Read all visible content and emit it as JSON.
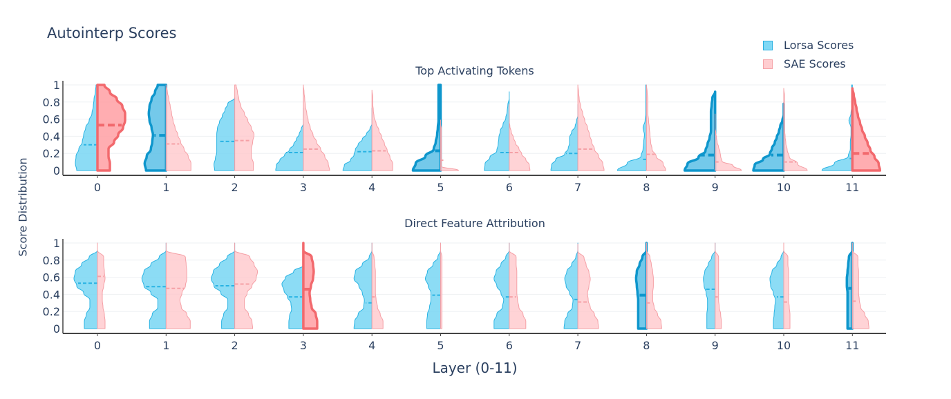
{
  "title": "Autointerp Scores",
  "legend": [
    {
      "label": "Lorsa Scores",
      "fill": "#7fd8f5",
      "stroke": "#2ab0e0"
    },
    {
      "label": "SAE Scores",
      "fill": "#ffcdd0",
      "stroke": "#f5a3a8"
    }
  ],
  "colors": {
    "lorsa_fill": "#6fd3f3",
    "lorsa_line": "#29b3e3",
    "lorsa_highlight_fill": "#5cc0e6",
    "lorsa_highlight_line": "#0e96cc",
    "sae_fill": "#ffc8cc",
    "sae_line": "#f5a0a6",
    "sae_highlight_fill": "#ff9fa3",
    "sae_highlight_line": "#f2696d",
    "grid": "#eef0f3",
    "axis": "#444444",
    "text": "#2a3f5f"
  },
  "xaxis_label": "Layer (0-11)",
  "yaxis_label": "Score Distribution",
  "chart_data": [
    {
      "type": "violin",
      "title": "Top Activating Tokens",
      "xlabel": "Layer (0-11)",
      "ylabel": "Score Distribution",
      "categories": [
        "0",
        "1",
        "2",
        "3",
        "4",
        "5",
        "6",
        "7",
        "8",
        "9",
        "10",
        "11"
      ],
      "yticks": [
        "0",
        "0.2",
        "0.4",
        "0.6",
        "0.8",
        "1"
      ],
      "ylim": [
        0,
        1
      ],
      "series": [
        {
          "name": "Lorsa Scores",
          "side": "negative",
          "medians": [
            0.3,
            0.41,
            0.34,
            0.21,
            0.22,
            0.23,
            0.21,
            0.2,
            0.13,
            0.18,
            0.18,
            0.14
          ],
          "max": [
            1.0,
            1.0,
            0.85,
            0.73,
            0.73,
            1.0,
            0.92,
            0.77,
            1.0,
            0.92,
            0.78,
            1.0
          ],
          "highlighted": [
            false,
            true,
            false,
            false,
            false,
            true,
            false,
            false,
            false,
            true,
            true,
            false
          ],
          "widths": [
            [
              30,
              32,
              31,
              27,
              22,
              20,
              17,
              12,
              8,
              6,
              5,
              3,
              2
            ],
            [
              29,
              31,
              28,
              22,
              20,
              19,
              21,
              24,
              25,
              24,
              21,
              16,
              12
            ],
            [
              29,
              30,
              28,
              26,
              26,
              26,
              26,
              25,
              22,
              18,
              14,
              10,
              0
            ],
            [
              40,
              39,
              34,
              27,
              20,
              14,
              10,
              6,
              3,
              0,
              0,
              0,
              0
            ],
            [
              42,
              40,
              31,
              26,
              24,
              20,
              14,
              8,
              3,
              0,
              0,
              0,
              0
            ],
            [
              40,
              36,
              22,
              10,
              7,
              5,
              4,
              3,
              3,
              3,
              3,
              3,
              3
            ],
            [
              36,
              35,
              28,
              18,
              16,
              15,
              13,
              9,
              5,
              3,
              2,
              0,
              0
            ],
            [
              39,
              38,
              32,
              19,
              14,
              12,
              12,
              9,
              4,
              2,
              0,
              0,
              0
            ],
            [
              42,
              28,
              8,
              5,
              4,
              3,
              5,
              2,
              1,
              1,
              1,
              1,
              1
            ],
            [
              44,
              40,
              24,
              14,
              11,
              8,
              6,
              6,
              6,
              6,
              5,
              4,
              0
            ],
            [
              44,
              42,
              30,
              20,
              17,
              13,
              10,
              7,
              5,
              2,
              0,
              0,
              0
            ],
            [
              44,
              26,
              6,
              3,
              3,
              2,
              2,
              5,
              2,
              1,
              1,
              1,
              1
            ]
          ]
        },
        {
          "name": "SAE Scores",
          "side": "positive",
          "medians": [
            0.53,
            0.31,
            0.35,
            0.25,
            0.23,
            0.12,
            0.21,
            0.25,
            0.19,
            0.1,
            0.1,
            0.2
          ],
          "max": [
            1.0,
            1.0,
            1.0,
            1.0,
            0.94,
            0.59,
            0.77,
            1.0,
            1.0,
            0.66,
            0.96,
            0.96
          ],
          "highlighted": [
            true,
            false,
            false,
            false,
            false,
            false,
            false,
            false,
            false,
            false,
            false,
            true
          ],
          "widths": [
            [
              18,
              18,
              16,
              16,
              24,
              30,
              37,
              40,
              40,
              36,
              28,
              18,
              10
            ],
            [
              36,
              36,
              32,
              26,
              21,
              17,
              13,
              10,
              8,
              6,
              4,
              2,
              0
            ],
            [
              27,
              27,
              24,
              24,
              26,
              28,
              24,
              19,
              14,
              9,
              6,
              4,
              2
            ],
            [
              38,
              36,
              31,
              25,
              19,
              14,
              10,
              7,
              5,
              3,
              2,
              1,
              0
            ],
            [
              30,
              30,
              26,
              22,
              18,
              14,
              10,
              6,
              3,
              2,
              1,
              1,
              0
            ],
            [
              26,
              1,
              1,
              1,
              1,
              1,
              1,
              1,
              1,
              1,
              1,
              0,
              0
            ],
            [
              30,
              29,
              24,
              18,
              14,
              9,
              6,
              3,
              1,
              0,
              0,
              0,
              0
            ],
            [
              38,
              36,
              30,
              24,
              20,
              17,
              14,
              10,
              7,
              4,
              2,
              1,
              0
            ],
            [
              28,
              24,
              14,
              8,
              6,
              5,
              4,
              3,
              2,
              2,
              2,
              1,
              0
            ],
            [
              38,
              26,
              10,
              8,
              7,
              5,
              3,
              2,
              1,
              0,
              0,
              0,
              0
            ],
            [
              34,
              20,
              8,
              5,
              3,
              2,
              1,
              1,
              1,
              1,
              1,
              1,
              0
            ],
            [
              40,
              38,
              32,
              26,
              22,
              18,
              14,
              11,
              8,
              6,
              4,
              2,
              0
            ]
          ]
        }
      ]
    },
    {
      "type": "violin",
      "title": "Direct Feature Attribution",
      "xlabel": "Layer (0-11)",
      "ylabel": "Score Distribution",
      "categories": [
        "0",
        "1",
        "2",
        "3",
        "4",
        "5",
        "6",
        "7",
        "8",
        "9",
        "10",
        "11"
      ],
      "yticks": [
        "0",
        "0.2",
        "0.4",
        "0.6",
        "0.8",
        "1"
      ],
      "ylim": [
        0,
        1
      ],
      "series": [
        {
          "name": "Lorsa Scores",
          "side": "negative",
          "medians": [
            0.53,
            0.49,
            0.5,
            0.37,
            0.3,
            0.39,
            0.37,
            0.34,
            0.39,
            0.46,
            0.37,
            0.47
          ],
          "max": [
            1.0,
            1.0,
            1.0,
            0.89,
            1.0,
            1.0,
            1.0,
            1.0,
            1.0,
            1.0,
            1.0,
            1.0
          ],
          "highlighted": [
            false,
            false,
            false,
            false,
            false,
            false,
            false,
            false,
            true,
            false,
            false,
            true
          ],
          "widths": [
            [
              19,
              19,
              16,
              11,
              11,
              20,
              30,
              34,
              32,
              23,
              12,
              0,
              0
            ],
            [
              24,
              24,
              20,
              12,
              12,
              22,
              32,
              35,
              32,
              22,
              10,
              0,
              0
            ],
            [
              19,
              19,
              16,
              10,
              10,
              20,
              30,
              34,
              31,
              22,
              11,
              0,
              0
            ],
            [
              21,
              21,
              20,
              17,
              18,
              23,
              28,
              31,
              26,
              14,
              0,
              0,
              0
            ],
            [
              26,
              25,
              20,
              12,
              11,
              14,
              19,
              26,
              24,
              14,
              4,
              0,
              0
            ],
            [
              20,
              20,
              19,
              16,
              14,
              14,
              18,
              22,
              19,
              11,
              4,
              0,
              0
            ],
            [
              22,
              22,
              18,
              10,
              8,
              12,
              18,
              22,
              19,
              12,
              5,
              0,
              0
            ],
            [
              20,
              19,
              15,
              8,
              7,
              12,
              17,
              19,
              16,
              9,
              3,
              0,
              0
            ],
            [
              12,
              12,
              12,
              12,
              12,
              13,
              14,
              15,
              14,
              10,
              6,
              0,
              0
            ],
            [
              12,
              12,
              12,
              11,
              11,
              13,
              16,
              17,
              15,
              10,
              5,
              0,
              0
            ],
            [
              15,
              15,
              14,
              13,
              12,
              15,
              19,
              20,
              17,
              10,
              4,
              0,
              0
            ],
            [
              7,
              7,
              7,
              7,
              7,
              7,
              8,
              8,
              7,
              6,
              5,
              0,
              0
            ]
          ]
        },
        {
          "name": "SAE Scores",
          "side": "positive",
          "medians": [
            0.61,
            0.47,
            0.52,
            0.46,
            0.37,
            0.0,
            0.37,
            0.31,
            0.3,
            0.37,
            0.31,
            0.32
          ],
          "max": [
            1.0,
            1.0,
            1.0,
            1.0,
            1.0,
            1.0,
            1.0,
            0.99,
            1.0,
            1.0,
            1.0,
            1.0
          ],
          "highlighted": [
            false,
            false,
            false,
            true,
            false,
            false,
            false,
            false,
            false,
            false,
            false,
            false
          ],
          "widths": [
            [
              11,
              11,
              10,
              8,
              7,
              7,
              9,
              11,
              10,
              9,
              9,
              0,
              0
            ],
            [
              35,
              35,
              30,
              22,
              20,
              23,
              28,
              30,
              30,
              29,
              28,
              0,
              0
            ],
            [
              26,
              25,
              20,
              14,
              14,
              18,
              25,
              31,
              33,
              28,
              22,
              0,
              0
            ],
            [
              20,
              20,
              18,
              12,
              10,
              9,
              11,
              14,
              15,
              14,
              12,
              0,
              0
            ],
            [
              16,
              16,
              12,
              8,
              6,
              5,
              5,
              5,
              5,
              4,
              3,
              0,
              0
            ],
            [
              2,
              2,
              2,
              2,
              2,
              2,
              2,
              2,
              2,
              2,
              2,
              0,
              0
            ],
            [
              24,
              24,
              20,
              14,
              12,
              11,
              11,
              11,
              11,
              10,
              10,
              0,
              0
            ],
            [
              30,
              29,
              24,
              18,
              15,
              14,
              16,
              18,
              16,
              12,
              9,
              0,
              0
            ],
            [
              22,
              21,
              16,
              11,
              9,
              9,
              10,
              10,
              9,
              7,
              5,
              0,
              0
            ],
            [
              9,
              9,
              8,
              6,
              5,
              5,
              5,
              5,
              5,
              5,
              5,
              0,
              0
            ],
            [
              9,
              9,
              9,
              8,
              7,
              7,
              7,
              7,
              7,
              6,
              6,
              0,
              0
            ],
            [
              24,
              23,
              18,
              12,
              10,
              9,
              9,
              9,
              9,
              8,
              8,
              0,
              0
            ]
          ]
        }
      ]
    }
  ]
}
